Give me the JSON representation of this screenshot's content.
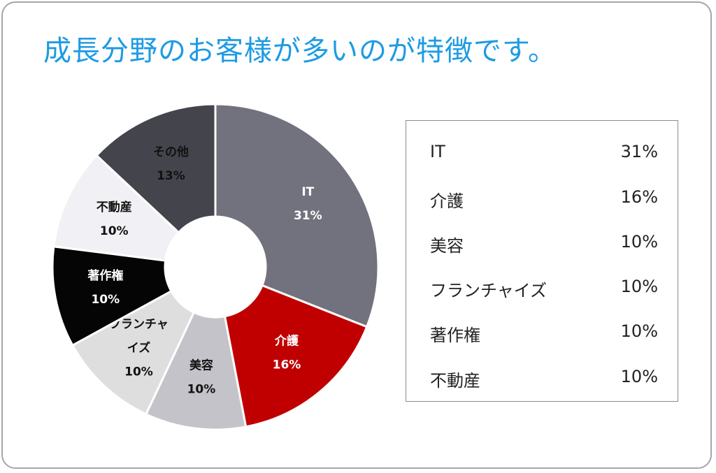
{
  "title": "成長分野のお客様が多いのが特徴です。",
  "colors": {
    "title": "#1d9be3",
    "border": "#a6a6a6"
  },
  "chart_data": {
    "type": "pie",
    "slices": [
      {
        "name": "IT",
        "label_lines": [
          "IT"
        ],
        "value": 31,
        "value_label": "31%",
        "color": "#72727e",
        "text_color": "#ffffff"
      },
      {
        "name": "介護",
        "label_lines": [
          "介護"
        ],
        "value": 16,
        "value_label": "16%",
        "color": "#c00000",
        "text_color": "#ffffff"
      },
      {
        "name": "美容",
        "label_lines": [
          "美容"
        ],
        "value": 10,
        "value_label": "10%",
        "color": "#c3c3c9",
        "text_color": "#111111"
      },
      {
        "name": "フランチャイズ",
        "label_lines": [
          "フランチャ",
          "イズ"
        ],
        "value": 10,
        "value_label": "10%",
        "color": "#dedede",
        "text_color": "#111111"
      },
      {
        "name": "著作権",
        "label_lines": [
          "著作権"
        ],
        "value": 10,
        "value_label": "10%",
        "color": "#050505",
        "text_color": "#ffffff"
      },
      {
        "name": "不動産",
        "label_lines": [
          "不動産"
        ],
        "value": 10,
        "value_label": "10%",
        "color": "#f1f1f5",
        "text_color": "#111111"
      },
      {
        "name": "その他",
        "label_lines": [
          "その他"
        ],
        "value": 13,
        "value_label": "13%",
        "color": "#44444c",
        "text_color": "#111111"
      }
    ]
  },
  "legend": [
    {
      "name": "IT",
      "value": "31%"
    },
    {
      "name": "介護",
      "value": "16%"
    },
    {
      "name": "美容",
      "value": "10%"
    },
    {
      "name": "フランチャイズ",
      "value": "10%"
    },
    {
      "name": "著作権",
      "value": "10%"
    },
    {
      "name": "不動産",
      "value": "10%"
    }
  ]
}
